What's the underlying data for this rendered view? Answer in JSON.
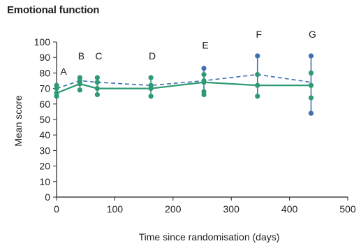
{
  "chart_data": {
    "type": "line",
    "title": "Emotional function",
    "xlabel": "Time since randomisation (days)",
    "ylabel": "Mean score",
    "xlim": [
      0,
      500
    ],
    "ylim": [
      0,
      100
    ],
    "xticks": [
      0,
      100,
      200,
      300,
      400,
      500
    ],
    "yticks": [
      0,
      10,
      20,
      30,
      40,
      50,
      60,
      70,
      80,
      90,
      100
    ],
    "grid": false,
    "colors": {
      "green": "#2e9a73",
      "blue": "#3f6fb3",
      "axis": "#222222"
    },
    "series": [
      {
        "style": "dashed",
        "color": "#3f6fb3",
        "x": [
          0,
          40,
          70,
          162,
          253,
          345,
          437
        ],
        "y": [
          70,
          75,
          74,
          72,
          75,
          79,
          74
        ]
      },
      {
        "style": "solid",
        "color": "#2e9a73",
        "x": [
          0,
          40,
          70,
          162,
          253,
          345,
          437
        ],
        "y": [
          67,
          73,
          70,
          70,
          74,
          72,
          72
        ]
      }
    ],
    "error_bars": [
      {
        "x": 0,
        "low": 65,
        "high": 72,
        "color": "#2e9a73"
      },
      {
        "x": 40,
        "low": 69,
        "high": 77,
        "color": "#2e9a73"
      },
      {
        "x": 70,
        "low": 66,
        "high": 77,
        "color": "#2e9a73"
      },
      {
        "x": 162,
        "low": 65,
        "high": 77,
        "color": "#2e9a73"
      },
      {
        "x": 253,
        "low": 66,
        "high": 83,
        "color": "#3f6fb3"
      },
      {
        "x": 345,
        "low": 65,
        "high": 91,
        "color": "#3f6fb3"
      },
      {
        "x": 437,
        "low": 54,
        "high": 91,
        "color": "#3f6fb3"
      }
    ],
    "markers": [
      {
        "x": 0,
        "y": 72,
        "color": "#2e9a73"
      },
      {
        "x": 0,
        "y": 70,
        "color": "#2e9a73"
      },
      {
        "x": 0,
        "y": 67,
        "color": "#2e9a73"
      },
      {
        "x": 0,
        "y": 65,
        "color": "#2e9a73"
      },
      {
        "x": 40,
        "y": 77,
        "color": "#2e9a73"
      },
      {
        "x": 40,
        "y": 75,
        "color": "#2e9a73"
      },
      {
        "x": 40,
        "y": 73,
        "color": "#2e9a73"
      },
      {
        "x": 40,
        "y": 69,
        "color": "#2e9a73"
      },
      {
        "x": 70,
        "y": 77,
        "color": "#2e9a73"
      },
      {
        "x": 70,
        "y": 74,
        "color": "#2e9a73"
      },
      {
        "x": 70,
        "y": 70,
        "color": "#2e9a73"
      },
      {
        "x": 70,
        "y": 66,
        "color": "#2e9a73"
      },
      {
        "x": 162,
        "y": 77,
        "color": "#2e9a73"
      },
      {
        "x": 162,
        "y": 72,
        "color": "#2e9a73"
      },
      {
        "x": 162,
        "y": 70,
        "color": "#2e9a73"
      },
      {
        "x": 162,
        "y": 65,
        "color": "#2e9a73"
      },
      {
        "x": 253,
        "y": 83,
        "color": "#3f6fb3"
      },
      {
        "x": 253,
        "y": 79,
        "color": "#2e9a73"
      },
      {
        "x": 253,
        "y": 75,
        "color": "#2e9a73"
      },
      {
        "x": 253,
        "y": 74,
        "color": "#2e9a73"
      },
      {
        "x": 253,
        "y": 68,
        "color": "#2e9a73"
      },
      {
        "x": 253,
        "y": 66,
        "color": "#2e9a73"
      },
      {
        "x": 345,
        "y": 91,
        "color": "#3f6fb3"
      },
      {
        "x": 345,
        "y": 79,
        "color": "#2e9a73"
      },
      {
        "x": 345,
        "y": 72,
        "color": "#2e9a73"
      },
      {
        "x": 345,
        "y": 65,
        "color": "#2e9a73"
      },
      {
        "x": 437,
        "y": 91,
        "color": "#3f6fb3"
      },
      {
        "x": 437,
        "y": 80,
        "color": "#2e9a73"
      },
      {
        "x": 437,
        "y": 72,
        "color": "#2e9a73"
      },
      {
        "x": 437,
        "y": 64,
        "color": "#2e9a73"
      },
      {
        "x": 437,
        "y": 54,
        "color": "#3f6fb3"
      }
    ],
    "annotations": [
      {
        "label": "A",
        "x": 0,
        "y": 81
      },
      {
        "label": "B",
        "x": 40,
        "y": 91
      },
      {
        "label": "C",
        "x": 70,
        "y": 91
      },
      {
        "label": "D",
        "x": 162,
        "y": 91
      },
      {
        "label": "E",
        "x": 253,
        "y": 98
      },
      {
        "label": "F",
        "x": 345,
        "y": 105
      },
      {
        "label": "G",
        "x": 437,
        "y": 105
      }
    ]
  }
}
